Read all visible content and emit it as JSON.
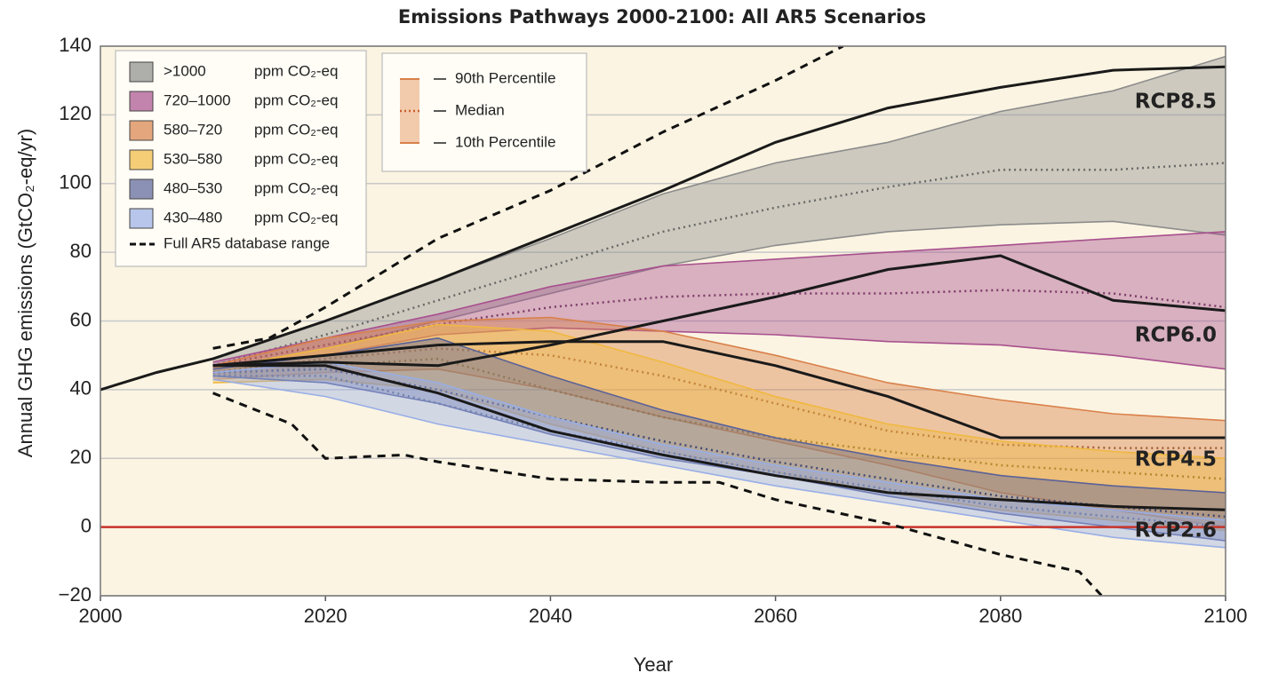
{
  "chart_data": {
    "type": "line",
    "title": "Emissions Pathways 2000-2100: All AR5 Scenarios",
    "xlabel": "Year",
    "ylabel": "Annual GHG emissions (GtCO₂-eq/yr)",
    "xlim": [
      2000,
      2100
    ],
    "ylim": [
      -20,
      140
    ],
    "xticks": [
      2000,
      2020,
      2040,
      2060,
      2080,
      2100
    ],
    "yticks": [
      {
        "value": -20,
        "label": "−20"
      },
      0,
      20,
      40,
      60,
      80,
      100,
      120,
      140
    ],
    "grid": true,
    "background": "#fbf4e2",
    "legend_unit": "ppm CO₂-eq",
    "bands": [
      {
        "name": ">1000",
        "color": "#8c8c8c",
        "x": [
          2010,
          2020,
          2030,
          2040,
          2050,
          2060,
          2070,
          2080,
          2090,
          2100
        ],
        "p90": [
          49,
          60,
          72,
          84,
          97,
          106,
          112,
          121,
          127,
          137
        ],
        "median": [
          47,
          56,
          66,
          76,
          86,
          93,
          99,
          104,
          104,
          106
        ],
        "p10": [
          46,
          52,
          60,
          68,
          76,
          82,
          86,
          88,
          89,
          85
        ]
      },
      {
        "name": "720–1000",
        "color": "#a8508e",
        "x": [
          2010,
          2020,
          2030,
          2040,
          2050,
          2060,
          2070,
          2080,
          2090,
          2100
        ],
        "p90": [
          48,
          55,
          62,
          70,
          76,
          78,
          80,
          82,
          84,
          86
        ],
        "median": [
          47,
          53,
          59,
          64,
          67,
          68,
          68,
          69,
          68,
          64
        ],
        "p10": [
          46,
          50,
          56,
          58,
          57,
          56,
          54,
          53,
          50,
          46
        ]
      },
      {
        "name": "580–720",
        "color": "#d9804a",
        "x": [
          2010,
          2020,
          2030,
          2040,
          2050,
          2060,
          2070,
          2080,
          2090,
          2100
        ],
        "p90": [
          47,
          55,
          60,
          61,
          57,
          50,
          42,
          37,
          33,
          31
        ],
        "median": [
          45,
          49,
          52,
          50,
          44,
          36,
          28,
          24,
          23,
          23
        ],
        "p10": [
          43,
          45,
          46,
          40,
          32,
          25,
          18,
          10,
          5,
          0
        ]
      },
      {
        "name": "530–580",
        "color": "#f0b840",
        "x": [
          2010,
          2020,
          2030,
          2040,
          2050,
          2060,
          2070,
          2080,
          2090,
          2100
        ],
        "p90": [
          46,
          52,
          59,
          57,
          48,
          38,
          30,
          25,
          22,
          20
        ],
        "median": [
          44,
          47,
          49,
          40,
          32,
          26,
          22,
          18,
          16,
          14
        ],
        "p10": [
          42,
          43,
          40,
          30,
          22,
          16,
          10,
          5,
          2,
          -1
        ]
      },
      {
        "name": "480–530",
        "color": "#5a6298",
        "x": [
          2010,
          2020,
          2030,
          2040,
          2050,
          2060,
          2070,
          2080,
          2090,
          2100
        ],
        "p90": [
          46,
          50,
          55,
          44,
          34,
          26,
          20,
          15,
          12,
          10
        ],
        "median": [
          45,
          46,
          40,
          32,
          25,
          19,
          14,
          9,
          6,
          3
        ],
        "p10": [
          44,
          42,
          36,
          27,
          20,
          15,
          9,
          4,
          0,
          -4
        ]
      },
      {
        "name": "430–480",
        "color": "#98aee6",
        "x": [
          2010,
          2020,
          2030,
          2040,
          2050,
          2060,
          2070,
          2080,
          2090,
          2100
        ],
        "p90": [
          45,
          48,
          42,
          32,
          24,
          18,
          13,
          8,
          5,
          2
        ],
        "median": [
          44,
          44,
          36,
          28,
          22,
          16,
          11,
          6,
          3,
          0
        ],
        "p10": [
          43,
          38,
          30,
          24,
          18,
          12,
          7,
          2,
          -3,
          -6
        ]
      }
    ],
    "range": {
      "name": "Full AR5 database range",
      "upper": {
        "x": [
          2010,
          2015,
          2020,
          2030,
          2040,
          2050,
          2060,
          2066
        ],
        "values": [
          52,
          55,
          64,
          84,
          98,
          115,
          130,
          140
        ]
      },
      "lower": {
        "x": [
          2010,
          2017,
          2020,
          2027,
          2030,
          2040,
          2050,
          2055,
          2060,
          2070,
          2080,
          2087,
          2089
        ],
        "values": [
          39,
          30,
          20,
          21,
          19,
          14,
          13,
          13,
          8,
          1,
          -8,
          -13,
          -20
        ]
      }
    },
    "percentile_legend": [
      "90th Percentile",
      "Median",
      "10th Percentile"
    ],
    "series": [
      {
        "name": "RCP8.5",
        "color": "#1a1a1a",
        "x": [
          2000,
          2005,
          2010,
          2020,
          2030,
          2040,
          2050,
          2060,
          2070,
          2080,
          2090,
          2100
        ],
        "values": [
          40,
          45,
          49,
          60,
          72,
          85,
          98,
          112,
          122,
          128,
          133,
          134
        ]
      },
      {
        "name": "RCP6.0",
        "color": "#1a1a1a",
        "x": [
          2010,
          2020,
          2030,
          2040,
          2050,
          2060,
          2070,
          2080,
          2090,
          2100
        ],
        "values": [
          47,
          48,
          47,
          53,
          60,
          67,
          75,
          79,
          66,
          63
        ]
      },
      {
        "name": "RCP4.5",
        "color": "#1a1a1a",
        "x": [
          2010,
          2020,
          2030,
          2040,
          2050,
          2060,
          2070,
          2080,
          2090,
          2100
        ],
        "values": [
          47,
          50,
          53,
          54,
          54,
          47,
          38,
          26,
          26,
          26
        ]
      },
      {
        "name": "RCP2.6",
        "color": "#1a1a1a",
        "x": [
          2010,
          2020,
          2030,
          2040,
          2050,
          2060,
          2070,
          2080,
          2090,
          2100
        ],
        "values": [
          47,
          47,
          39,
          28,
          21,
          15,
          10,
          8,
          6,
          5
        ]
      }
    ],
    "reference_line": {
      "y": 0,
      "color": "#c8342a"
    }
  }
}
